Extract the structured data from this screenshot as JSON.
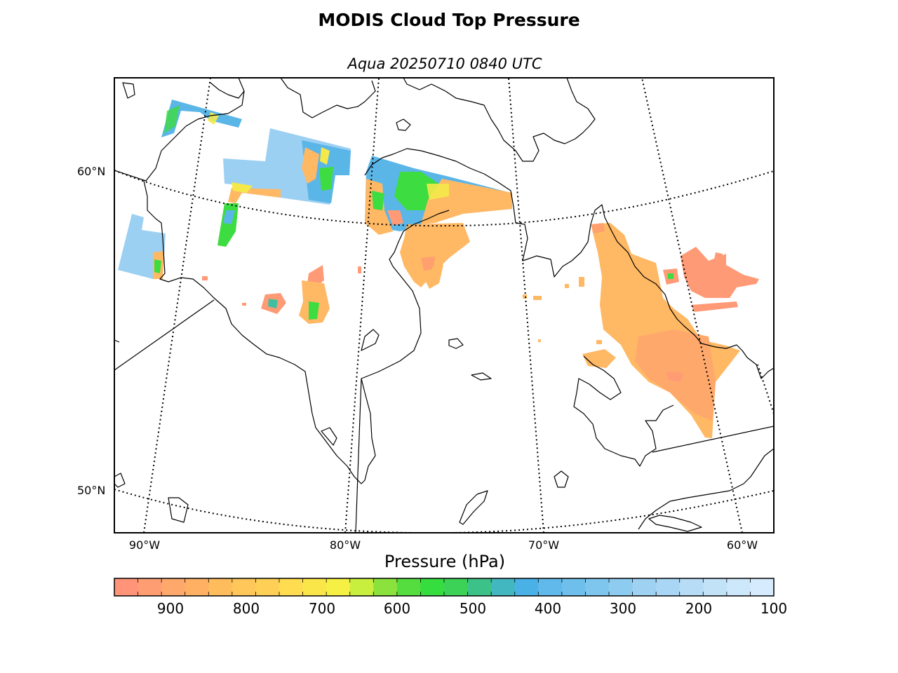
{
  "title": "MODIS Cloud Top Pressure",
  "subtitle": "Aqua 20250710 0840 UTC",
  "map": {
    "latitude_labels": [
      "60°N",
      "50°N"
    ],
    "longitude_labels": [
      "90°W",
      "80°W",
      "70°W",
      "60°W"
    ],
    "graticule_style": "dotted",
    "land_fill": "none",
    "coastline_color": "#000000"
  },
  "colorbar": {
    "title": "Pressure (hPa)",
    "ticks": [
      "900",
      "800",
      "700",
      "600",
      "500",
      "400",
      "300",
      "200",
      "100"
    ],
    "range_hpa": [
      975,
      100
    ],
    "colors": [
      "#ff9478",
      "#ff9d72",
      "#ffa86b",
      "#ffb063",
      "#ffbc5d",
      "#ffc65a",
      "#ffd055",
      "#ffdc50",
      "#fbe64a",
      "#f6ef44",
      "#c8ee3e",
      "#8be23c",
      "#55dd40",
      "#35dd3e",
      "#3cd257",
      "#3cc288",
      "#42b7c0",
      "#4ab1e6",
      "#60b9ea",
      "#6ebfec",
      "#7fc6ee",
      "#8ecbf0",
      "#9ed1f2",
      "#a9d6f4",
      "#b7dcf6",
      "#c2e2f8",
      "#cde7fb",
      "#d6ebfe"
    ]
  },
  "cloud_palette": {
    "low": "#ffb864",
    "low_edge": "#ff9a76",
    "mid_yellow": "#f5e94a",
    "mid_green": "#3ddc40",
    "teal": "#40bfa0",
    "high_blue": "#5bb6e8",
    "very_high": "#9cd0f2"
  }
}
